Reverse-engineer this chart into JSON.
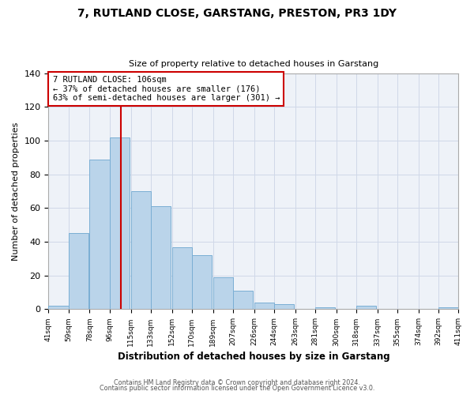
{
  "title": "7, RUTLAND CLOSE, GARSTANG, PRESTON, PR3 1DY",
  "subtitle": "Size of property relative to detached houses in Garstang",
  "xlabel": "Distribution of detached houses by size in Garstang",
  "ylabel": "Number of detached properties",
  "bar_left_edges": [
    41,
    59,
    78,
    96,
    115,
    133,
    152,
    170,
    189,
    207,
    226,
    244,
    263,
    281,
    300,
    318,
    337,
    355,
    374,
    392
  ],
  "bar_heights": [
    2,
    45,
    89,
    102,
    70,
    61,
    37,
    32,
    19,
    11,
    4,
    3,
    0,
    1,
    0,
    2,
    0,
    0,
    0,
    1
  ],
  "bin_width": 18,
  "bar_color": "#bad4ea",
  "bar_edge_color": "#7aaed4",
  "property_line_x": 106,
  "property_line_color": "#cc0000",
  "annotation_box_text": "7 RUTLAND CLOSE: 106sqm\n← 37% of detached houses are smaller (176)\n63% of semi-detached houses are larger (301) →",
  "annotation_box_facecolor": "#ffffff",
  "annotation_box_edgecolor": "#cc0000",
  "ylim": [
    0,
    140
  ],
  "yticks": [
    0,
    20,
    40,
    60,
    80,
    100,
    120,
    140
  ],
  "x_tick_labels": [
    "41sqm",
    "59sqm",
    "78sqm",
    "96sqm",
    "115sqm",
    "133sqm",
    "152sqm",
    "170sqm",
    "189sqm",
    "207sqm",
    "226sqm",
    "244sqm",
    "263sqm",
    "281sqm",
    "300sqm",
    "318sqm",
    "337sqm",
    "355sqm",
    "374sqm",
    "392sqm",
    "411sqm"
  ],
  "footer_line1": "Contains HM Land Registry data © Crown copyright and database right 2024.",
  "footer_line2": "Contains public sector information licensed under the Open Government Licence v3.0.",
  "grid_color": "#d0d8e8",
  "background_color": "#ffffff",
  "plot_bg_color": "#eef2f8"
}
